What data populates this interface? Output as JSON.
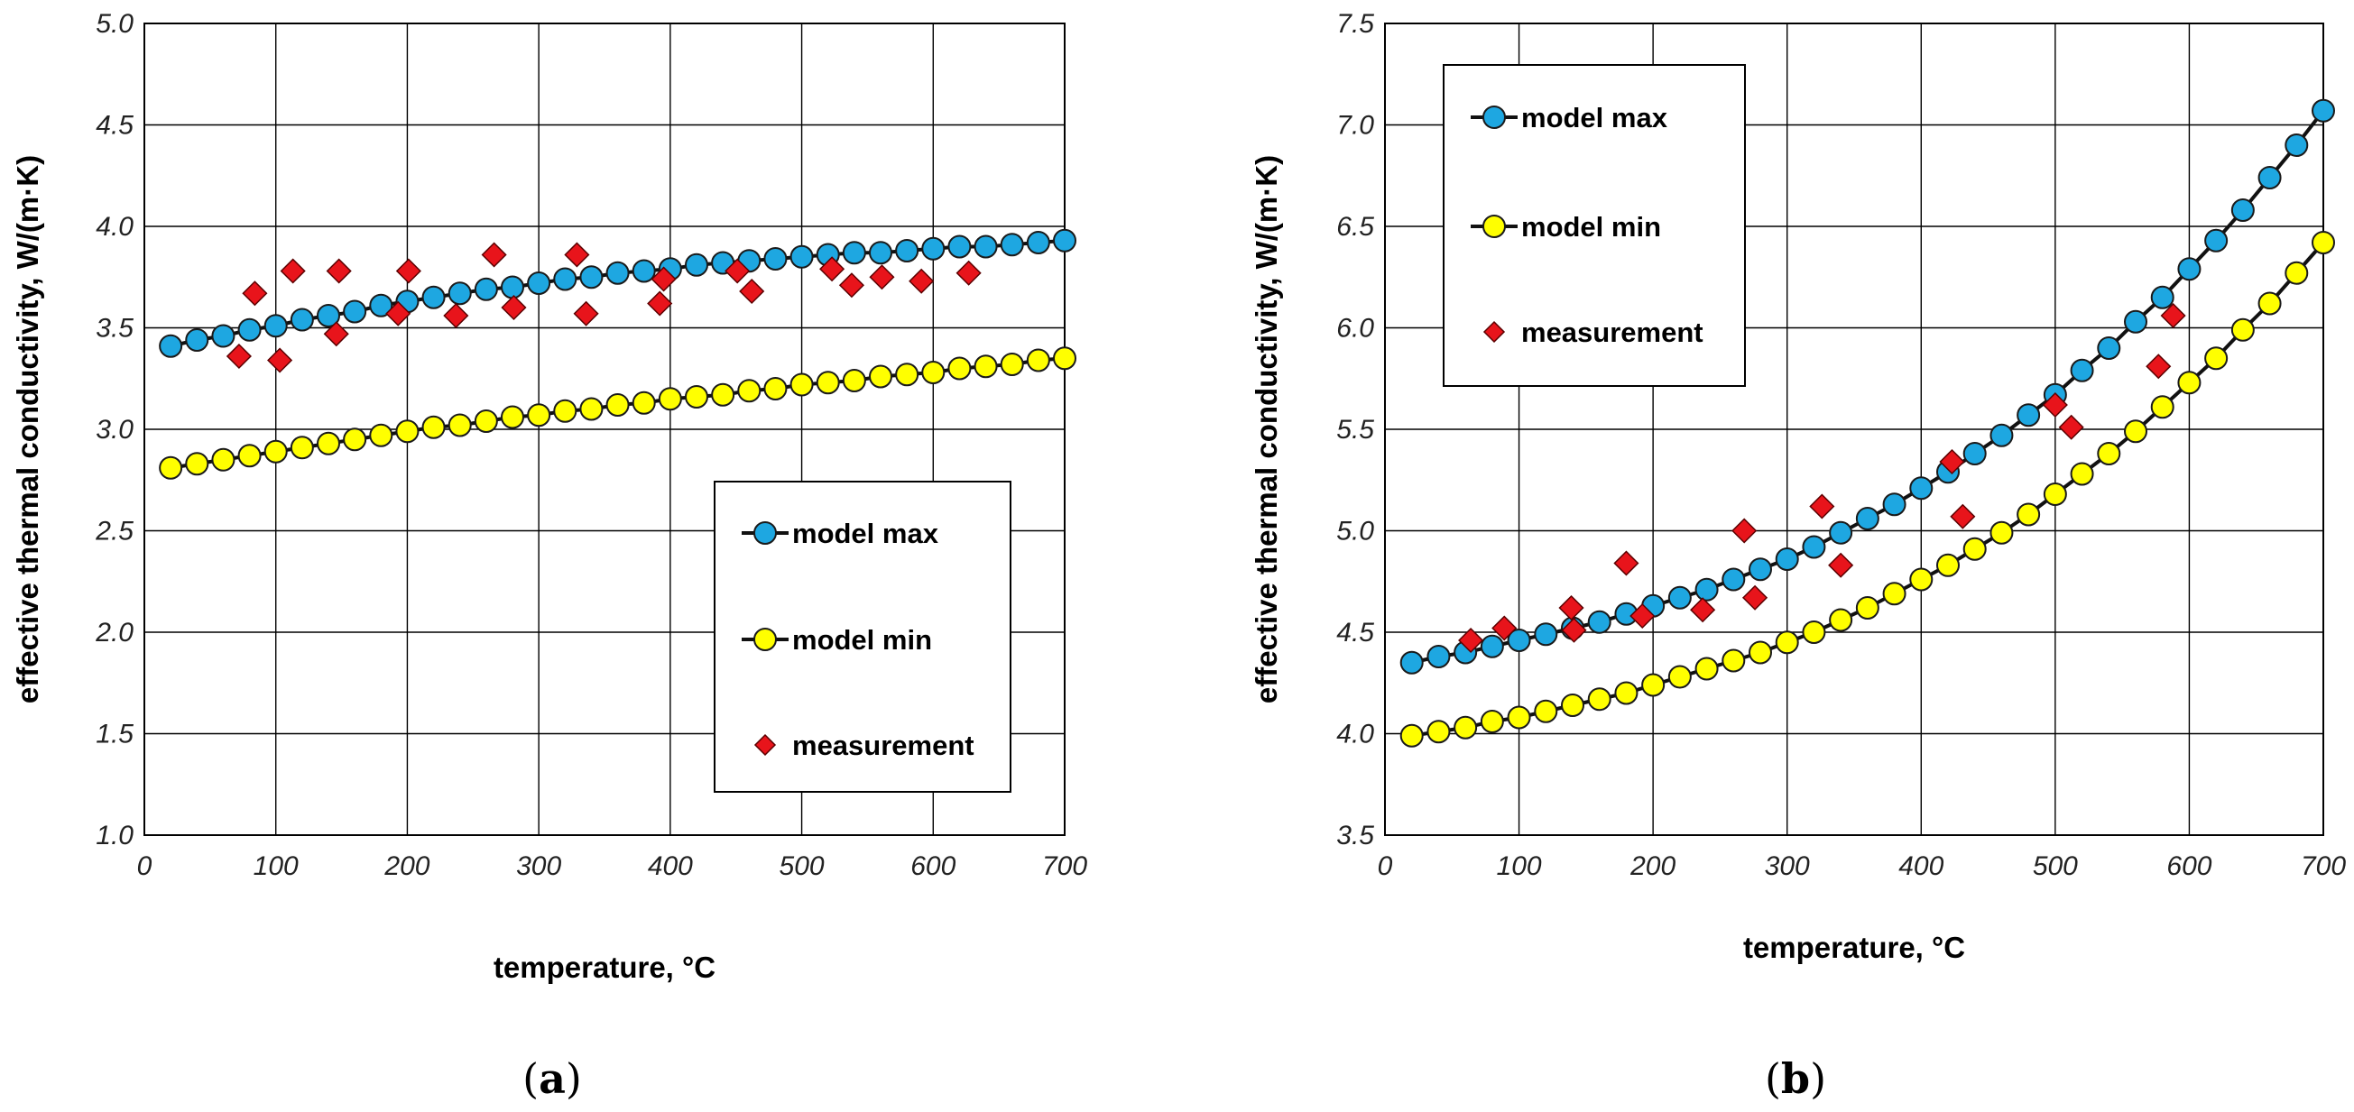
{
  "chart_data": [
    {
      "type": "scatter",
      "panel_label": {
        "open": "(",
        "letter": "a",
        "close": ")"
      },
      "xlabel": "temperature, °C",
      "ylabel": "effective thermal conductivity, W/(m·K)",
      "xlim": [
        0,
        700
      ],
      "ylim": [
        1.0,
        5.0
      ],
      "xticks": [
        0,
        100,
        200,
        300,
        400,
        500,
        600,
        700
      ],
      "yticks": [
        1.0,
        1.5,
        2.0,
        2.5,
        3.0,
        3.5,
        4.0,
        4.5,
        5.0
      ],
      "ytick_labels": [
        "1.0",
        "1.5",
        "2.0",
        "2.5",
        "3.0",
        "3.5",
        "4.0",
        "4.5",
        "5.0"
      ],
      "grid": true,
      "legend": {
        "position": "lower-right"
      },
      "series": [
        {
          "name": "model max",
          "style": "line-circle",
          "color": "#1ea7e1",
          "x": [
            20,
            40,
            60,
            80,
            100,
            120,
            140,
            160,
            180,
            200,
            220,
            240,
            260,
            280,
            300,
            320,
            340,
            360,
            380,
            400,
            420,
            440,
            460,
            480,
            500,
            520,
            540,
            560,
            580,
            600,
            620,
            640,
            660,
            680,
            700
          ],
          "y": [
            3.41,
            3.44,
            3.46,
            3.49,
            3.51,
            3.54,
            3.56,
            3.58,
            3.61,
            3.63,
            3.65,
            3.67,
            3.69,
            3.7,
            3.72,
            3.74,
            3.75,
            3.77,
            3.78,
            3.79,
            3.81,
            3.82,
            3.83,
            3.84,
            3.85,
            3.86,
            3.87,
            3.87,
            3.88,
            3.89,
            3.9,
            3.9,
            3.91,
            3.92,
            3.93
          ]
        },
        {
          "name": "model min",
          "style": "line-circle",
          "color": "#ffff00",
          "x": [
            20,
            40,
            60,
            80,
            100,
            120,
            140,
            160,
            180,
            200,
            220,
            240,
            260,
            280,
            300,
            320,
            340,
            360,
            380,
            400,
            420,
            440,
            460,
            480,
            500,
            520,
            540,
            560,
            580,
            600,
            620,
            640,
            660,
            680,
            700
          ],
          "y": [
            2.81,
            2.83,
            2.85,
            2.87,
            2.89,
            2.91,
            2.93,
            2.95,
            2.97,
            2.99,
            3.01,
            3.02,
            3.04,
            3.06,
            3.07,
            3.09,
            3.1,
            3.12,
            3.13,
            3.15,
            3.16,
            3.17,
            3.19,
            3.2,
            3.22,
            3.23,
            3.24,
            3.26,
            3.27,
            3.28,
            3.3,
            3.31,
            3.32,
            3.34,
            3.35
          ]
        },
        {
          "name": "measurement",
          "style": "diamond",
          "color": "#e8141b",
          "x": [
            72,
            84,
            103,
            113,
            146,
            148,
            193,
            201,
            237,
            266,
            281,
            329,
            336,
            392,
            395,
            451,
            462,
            523,
            538,
            561,
            591,
            627
          ],
          "y": [
            3.36,
            3.67,
            3.34,
            3.78,
            3.47,
            3.78,
            3.57,
            3.78,
            3.56,
            3.86,
            3.6,
            3.86,
            3.57,
            3.62,
            3.74,
            3.78,
            3.68,
            3.79,
            3.71,
            3.75,
            3.73,
            3.77
          ]
        }
      ]
    },
    {
      "type": "scatter",
      "panel_label": {
        "open": "(",
        "letter": "b",
        "close": ")"
      },
      "xlabel": "temperature, °C",
      "ylabel": "effective thermal conductivity, W/(m·K)",
      "xlim": [
        0,
        700
      ],
      "ylim": [
        3.5,
        7.5
      ],
      "xticks": [
        0,
        100,
        200,
        300,
        400,
        500,
        600,
        700
      ],
      "yticks": [
        3.5,
        4.0,
        4.5,
        5.0,
        5.5,
        6.0,
        6.5,
        7.0,
        7.5
      ],
      "ytick_labels": [
        "3.5",
        "4.0",
        "4.5",
        "5.0",
        "5.5",
        "6.0",
        "6.5",
        "7.0",
        "7.5"
      ],
      "grid": true,
      "legend": {
        "position": "top-left"
      },
      "series": [
        {
          "name": "model max",
          "style": "line-circle",
          "color": "#1ea7e1",
          "x": [
            20,
            40,
            60,
            80,
            100,
            120,
            140,
            160,
            180,
            200,
            220,
            240,
            260,
            280,
            300,
            320,
            340,
            360,
            380,
            400,
            420,
            440,
            460,
            480,
            500,
            520,
            540,
            560,
            580,
            600,
            620,
            640,
            660,
            680,
            700
          ],
          "y": [
            4.35,
            4.38,
            4.4,
            4.43,
            4.46,
            4.49,
            4.52,
            4.55,
            4.59,
            4.63,
            4.67,
            4.71,
            4.76,
            4.81,
            4.86,
            4.92,
            4.99,
            5.06,
            5.13,
            5.21,
            5.29,
            5.38,
            5.47,
            5.57,
            5.67,
            5.79,
            5.9,
            6.03,
            6.15,
            6.29,
            6.43,
            6.58,
            6.74,
            6.9,
            7.07
          ]
        },
        {
          "name": "model min",
          "style": "line-circle",
          "color": "#ffff00",
          "x": [
            20,
            40,
            60,
            80,
            100,
            120,
            140,
            160,
            180,
            200,
            220,
            240,
            260,
            280,
            300,
            320,
            340,
            360,
            380,
            400,
            420,
            440,
            460,
            480,
            500,
            520,
            540,
            560,
            580,
            600,
            620,
            640,
            660,
            680,
            700
          ],
          "y": [
            3.99,
            4.01,
            4.03,
            4.06,
            4.08,
            4.11,
            4.14,
            4.17,
            4.2,
            4.24,
            4.28,
            4.32,
            4.36,
            4.4,
            4.45,
            4.5,
            4.56,
            4.62,
            4.69,
            4.76,
            4.83,
            4.91,
            4.99,
            5.08,
            5.18,
            5.28,
            5.38,
            5.49,
            5.61,
            5.73,
            5.85,
            5.99,
            6.12,
            6.27,
            6.42
          ]
        },
        {
          "name": "measurement",
          "style": "diamond",
          "color": "#e8141b",
          "x": [
            64,
            89,
            139,
            141,
            180,
            192,
            237,
            268,
            276,
            326,
            340,
            423,
            431,
            500,
            512,
            577,
            588
          ],
          "y": [
            4.46,
            4.52,
            4.62,
            4.51,
            4.84,
            4.58,
            4.61,
            5.0,
            4.67,
            5.12,
            4.83,
            5.34,
            5.07,
            5.62,
            5.51,
            5.81,
            6.06
          ]
        }
      ]
    }
  ]
}
